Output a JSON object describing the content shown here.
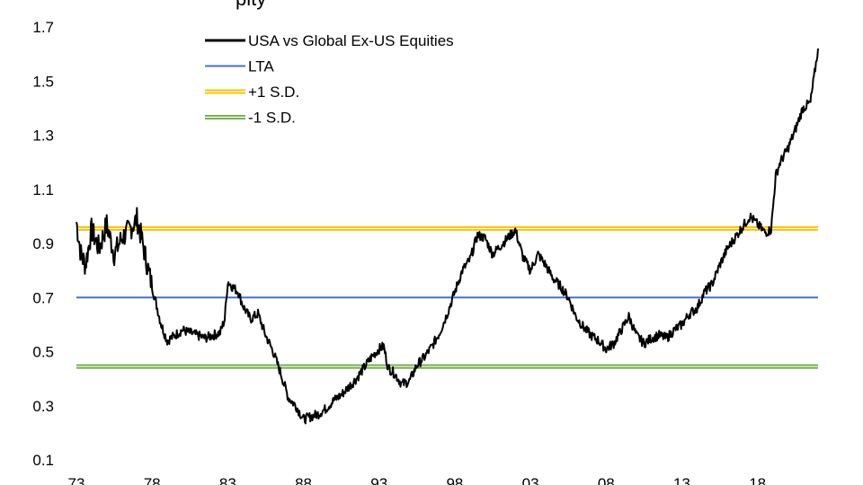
{
  "chart_data": {
    "type": "line",
    "title": "",
    "xlabel": "",
    "ylabel": "",
    "ylim": [
      0.1,
      1.7
    ],
    "xlim": [
      1973,
      2022
    ],
    "y_ticks": [
      "1.7",
      "1.5",
      "1.3",
      "1.1",
      "0.9",
      "0.7",
      "0.5",
      "0.3",
      "0.1"
    ],
    "x_ticks": [
      "73",
      "78",
      "83",
      "88",
      "93",
      "98",
      "03",
      "08",
      "13",
      "18"
    ],
    "grid": false,
    "legend_position": "top-left",
    "series": [
      {
        "name": "USA vs Global Ex-US Equities",
        "color": "#000000",
        "x": [
          1973.0,
          1973.3,
          1973.6,
          1974.0,
          1974.5,
          1975.0,
          1975.5,
          1976.0,
          1976.5,
          1977.0,
          1977.3,
          1977.6,
          1978.0,
          1978.3,
          1978.6,
          1979.0,
          1979.5,
          1980.0,
          1980.5,
          1981.0,
          1981.5,
          1982.0,
          1982.5,
          1982.8,
          1983.0,
          1983.3,
          1983.7,
          1984.0,
          1984.5,
          1985.0,
          1985.5,
          1986.0,
          1986.5,
          1987.0,
          1987.5,
          1988.0,
          1988.5,
          1989.0,
          1989.5,
          1990.0,
          1990.5,
          1991.0,
          1991.5,
          1992.0,
          1992.5,
          1993.0,
          1993.3,
          1993.6,
          1994.0,
          1994.5,
          1995.0,
          1995.5,
          1996.0,
          1996.5,
          1997.0,
          1997.5,
          1998.0,
          1998.5,
          1999.0,
          1999.5,
          2000.0,
          2000.5,
          2001.0,
          2001.5,
          2002.0,
          2002.5,
          2003.0,
          2003.5,
          2004.0,
          2004.5,
          2005.0,
          2005.5,
          2006.0,
          2006.5,
          2007.0,
          2007.5,
          2008.0,
          2008.5,
          2009.0,
          2009.5,
          2010.0,
          2010.5,
          2011.0,
          2011.5,
          2012.0,
          2012.5,
          2013.0,
          2013.5,
          2014.0,
          2014.5,
          2015.0,
          2015.5,
          2016.0,
          2016.5,
          2017.0,
          2017.5,
          2018.0,
          2018.5,
          2018.9,
          2019.2,
          2019.5,
          2020.0,
          2020.5,
          2021.0,
          2021.5,
          2022.0
        ],
        "y": [
          0.98,
          0.86,
          0.82,
          0.95,
          0.88,
          0.97,
          0.86,
          0.92,
          0.95,
          0.99,
          0.92,
          0.84,
          0.74,
          0.67,
          0.6,
          0.54,
          0.56,
          0.58,
          0.57,
          0.56,
          0.55,
          0.56,
          0.57,
          0.62,
          0.76,
          0.74,
          0.72,
          0.67,
          0.62,
          0.64,
          0.56,
          0.5,
          0.42,
          0.33,
          0.3,
          0.25,
          0.26,
          0.27,
          0.29,
          0.32,
          0.34,
          0.37,
          0.4,
          0.44,
          0.48,
          0.51,
          0.52,
          0.44,
          0.42,
          0.38,
          0.39,
          0.45,
          0.48,
          0.52,
          0.57,
          0.64,
          0.72,
          0.8,
          0.84,
          0.93,
          0.92,
          0.86,
          0.89,
          0.92,
          0.95,
          0.85,
          0.8,
          0.86,
          0.82,
          0.77,
          0.74,
          0.7,
          0.63,
          0.59,
          0.56,
          0.54,
          0.51,
          0.53,
          0.58,
          0.63,
          0.56,
          0.53,
          0.55,
          0.56,
          0.55,
          0.58,
          0.6,
          0.64,
          0.66,
          0.72,
          0.75,
          0.82,
          0.88,
          0.92,
          0.96,
          1.0,
          0.97,
          0.94,
          0.95,
          1.15,
          1.2,
          1.25,
          1.32,
          1.4,
          1.42,
          1.62
        ]
      },
      {
        "name": "LTA",
        "color": "#4472C4",
        "values": [
          0.7
        ]
      },
      {
        "name": "+1 S.D.",
        "color": "#FFC000",
        "values": [
          0.955
        ]
      },
      {
        "name": "-1 S.D.",
        "color": "#70AD47",
        "values": [
          0.445
        ]
      }
    ]
  },
  "title_fragment": "pity"
}
